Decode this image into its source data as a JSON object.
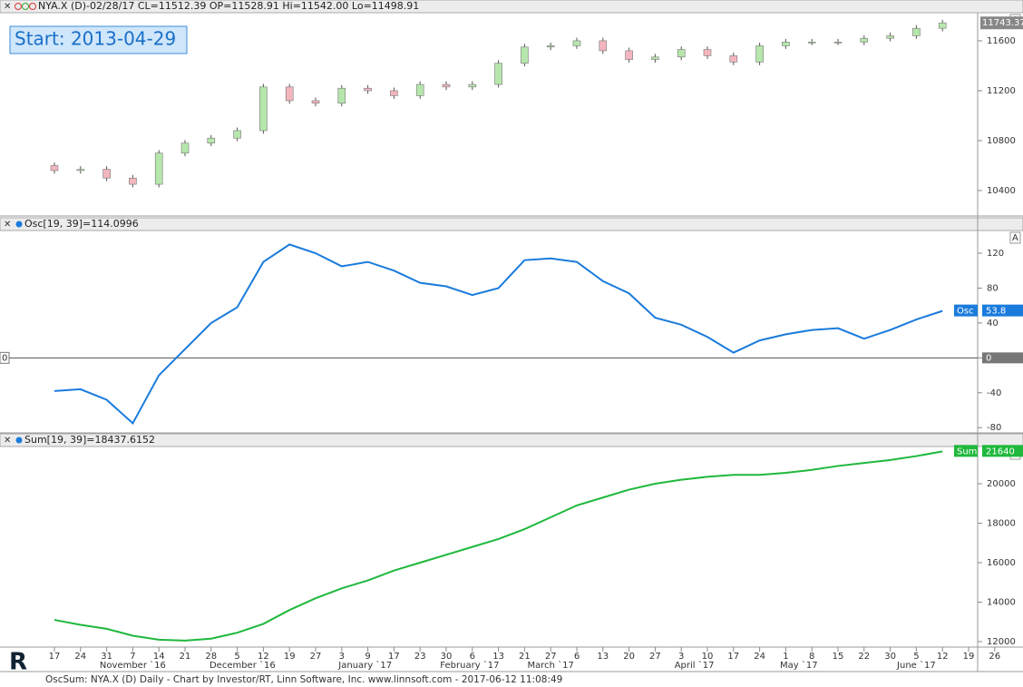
{
  "chart_data": [
    {
      "type": "candlestick",
      "title": "NYA.X (D)-02/28/17 CL=11512.39 OP=11528.91 Hi=11542.00 Lo=11498.91",
      "annotation": "Start: 2013-04-29",
      "open": [
        10600,
        10560,
        10570,
        10500,
        10450,
        10700,
        10780,
        10820,
        10880,
        11230,
        11120,
        11100,
        11220,
        11200,
        11160,
        11250,
        11230,
        11250,
        11420,
        11550,
        11560,
        11600,
        11520,
        11450,
        11470,
        11530,
        11480,
        11430,
        11560,
        11590,
        11590,
        11590,
        11620,
        11640,
        11700,
        null,
        null
      ],
      "high": [
        10625,
        10595,
        10595,
        10525,
        10725,
        10805,
        10845,
        10905,
        11255,
        11255,
        11145,
        11245,
        11245,
        11225,
        11275,
        11275,
        11275,
        11445,
        11575,
        11585,
        11625,
        11625,
        11545,
        11495,
        11555,
        11555,
        11505,
        11585,
        11615,
        11615,
        11615,
        11645,
        11665,
        11725,
        11768,
        null,
        null
      ],
      "low": [
        10535,
        10535,
        10475,
        10425,
        10425,
        10675,
        10755,
        10795,
        10855,
        11095,
        11075,
        11075,
        11175,
        11135,
        11135,
        11205,
        11205,
        11225,
        11395,
        11525,
        11535,
        11495,
        11425,
        11425,
        11445,
        11455,
        11405,
        11405,
        11535,
        11565,
        11565,
        11565,
        11595,
        11615,
        11675,
        null,
        null
      ],
      "close": [
        10560,
        10570,
        10500,
        10450,
        10700,
        10780,
        10820,
        10880,
        11230,
        11120,
        11100,
        11220,
        11200,
        11160,
        11250,
        11230,
        11250,
        11420,
        11550,
        11560,
        11600,
        11520,
        11450,
        11470,
        11530,
        11480,
        11430,
        11560,
        11590,
        11590,
        11590,
        11620,
        11640,
        11700,
        11743.37,
        null,
        null
      ],
      "up_color": "#b6e6ac",
      "down_color": "#f3b6be",
      "ylim": [
        10196,
        11825
      ],
      "yticks": [
        10400,
        10800,
        11200,
        11600
      ],
      "autoscale": "A"
    },
    {
      "type": "line",
      "title": "Osc[19, 39]=114.0996",
      "series": [
        {
          "name": "Osc",
          "color": "#1a7bdc",
          "values": [
            -38,
            -36,
            -48,
            -75,
            -20,
            10,
            40,
            58,
            110,
            130,
            120,
            105,
            110,
            100,
            86,
            82,
            72,
            80,
            112,
            114,
            110,
            88,
            74,
            46,
            38,
            24,
            6,
            20,
            27,
            32,
            34,
            22,
            32,
            44,
            53.8,
            null,
            null
          ]
        }
      ],
      "ylim": [
        -86,
        146
      ],
      "yticks": [
        -80,
        -40,
        0,
        40,
        80,
        120
      ],
      "autoscale": "A"
    },
    {
      "type": "line",
      "title": "Sum[19, 39]=18437.6152",
      "series": [
        {
          "name": "Sum",
          "color": "#1fb83c",
          "values": [
            13100,
            12850,
            12650,
            12300,
            12100,
            12050,
            12150,
            12450,
            12900,
            13600,
            14200,
            14700,
            15100,
            15600,
            16000,
            16400,
            16800,
            17200,
            17700,
            18300,
            18900,
            19300,
            19700,
            20000,
            20200,
            20350,
            20450,
            20450,
            20550,
            20700,
            20900,
            21050,
            21200,
            21400,
            21640,
            null,
            null
          ]
        }
      ],
      "ylim": [
        11770,
        21886
      ],
      "yticks": [
        12000,
        14000,
        16000,
        18000,
        20000
      ],
      "autoscale": "A",
      "categories": [
        "17",
        "24",
        "31",
        "7",
        "14",
        "21",
        "28",
        "5",
        "12",
        "19",
        "27",
        "3",
        "9",
        "17",
        "23",
        "30",
        "6",
        "13",
        "21",
        "27",
        "6",
        "13",
        "20",
        "27",
        "3",
        "10",
        "17",
        "24",
        "1",
        "8",
        "15",
        "22",
        "30",
        "5",
        "12",
        "19",
        "26"
      ],
      "months": [
        "November `16",
        "December `16",
        "January `17",
        "February `17",
        "March `17",
        "April `17",
        "May `17",
        "June `17"
      ]
    }
  ],
  "footer": "OscSum: NYA.X (D) Daily - Chart by Investor/RT, Linn Software, Inc. www.linnsoft.com - 2017-06-12 11:08:49"
}
